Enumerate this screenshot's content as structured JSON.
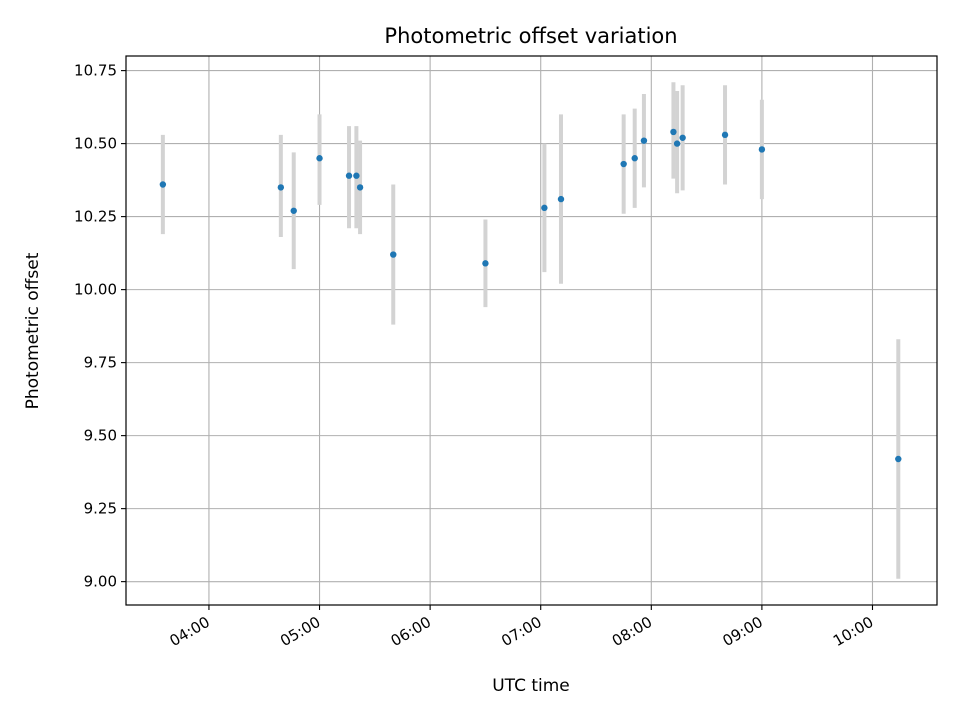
{
  "chart_data": {
    "type": "scatter",
    "title": "Photometric offset variation",
    "xlabel": "UTC time",
    "ylabel": "Photometric offset",
    "x_tick_labels": [
      "04:00",
      "05:00",
      "06:00",
      "07:00",
      "08:00",
      "09:00",
      "10:00"
    ],
    "y_tick_labels": [
      "9.00",
      "9.25",
      "9.50",
      "9.75",
      "10.00",
      "10.25",
      "10.50",
      "10.75"
    ],
    "x_ticks": [
      "04:00",
      "05:00",
      "06:00",
      "07:00",
      "08:00",
      "09:00",
      "10:00"
    ],
    "y_ticks": [
      9.0,
      9.25,
      9.5,
      9.75,
      10.0,
      10.25,
      10.5,
      10.75
    ],
    "xlim": [
      "03:15",
      "10:35"
    ],
    "ylim": [
      8.92,
      10.8
    ],
    "grid": true,
    "colors": {
      "point": "#1f77b4",
      "errorbar": "#d3d3d3",
      "grid": "#b0b0b0"
    },
    "points": [
      {
        "x": "03:35",
        "y": 10.36,
        "err_low": 10.19,
        "err_high": 10.53
      },
      {
        "x": "04:39",
        "y": 10.35,
        "err_low": 10.18,
        "err_high": 10.53
      },
      {
        "x": "04:46",
        "y": 10.27,
        "err_low": 10.07,
        "err_high": 10.47
      },
      {
        "x": "05:00",
        "y": 10.45,
        "err_low": 10.29,
        "err_high": 10.6
      },
      {
        "x": "05:16",
        "y": 10.39,
        "err_low": 10.21,
        "err_high": 10.56
      },
      {
        "x": "05:20",
        "y": 10.39,
        "err_low": 10.21,
        "err_high": 10.56
      },
      {
        "x": "05:22",
        "y": 10.35,
        "err_low": 10.19,
        "err_high": 10.51
      },
      {
        "x": "05:40",
        "y": 10.12,
        "err_low": 9.88,
        "err_high": 10.36
      },
      {
        "x": "06:30",
        "y": 10.09,
        "err_low": 9.94,
        "err_high": 10.24
      },
      {
        "x": "07:02",
        "y": 10.28,
        "err_low": 10.06,
        "err_high": 10.5
      },
      {
        "x": "07:11",
        "y": 10.31,
        "err_low": 10.02,
        "err_high": 10.6
      },
      {
        "x": "07:45",
        "y": 10.43,
        "err_low": 10.26,
        "err_high": 10.6
      },
      {
        "x": "07:51",
        "y": 10.45,
        "err_low": 10.28,
        "err_high": 10.62
      },
      {
        "x": "07:56",
        "y": 10.51,
        "err_low": 10.35,
        "err_high": 10.67
      },
      {
        "x": "08:12",
        "y": 10.54,
        "err_low": 10.38,
        "err_high": 10.71
      },
      {
        "x": "08:14",
        "y": 10.5,
        "err_low": 10.33,
        "err_high": 10.68
      },
      {
        "x": "08:17",
        "y": 10.52,
        "err_low": 10.34,
        "err_high": 10.7
      },
      {
        "x": "08:40",
        "y": 10.53,
        "err_low": 10.36,
        "err_high": 10.7
      },
      {
        "x": "09:00",
        "y": 10.48,
        "err_low": 10.31,
        "err_high": 10.65
      },
      {
        "x": "10:14",
        "y": 9.42,
        "err_low": 9.01,
        "err_high": 9.83
      }
    ]
  }
}
